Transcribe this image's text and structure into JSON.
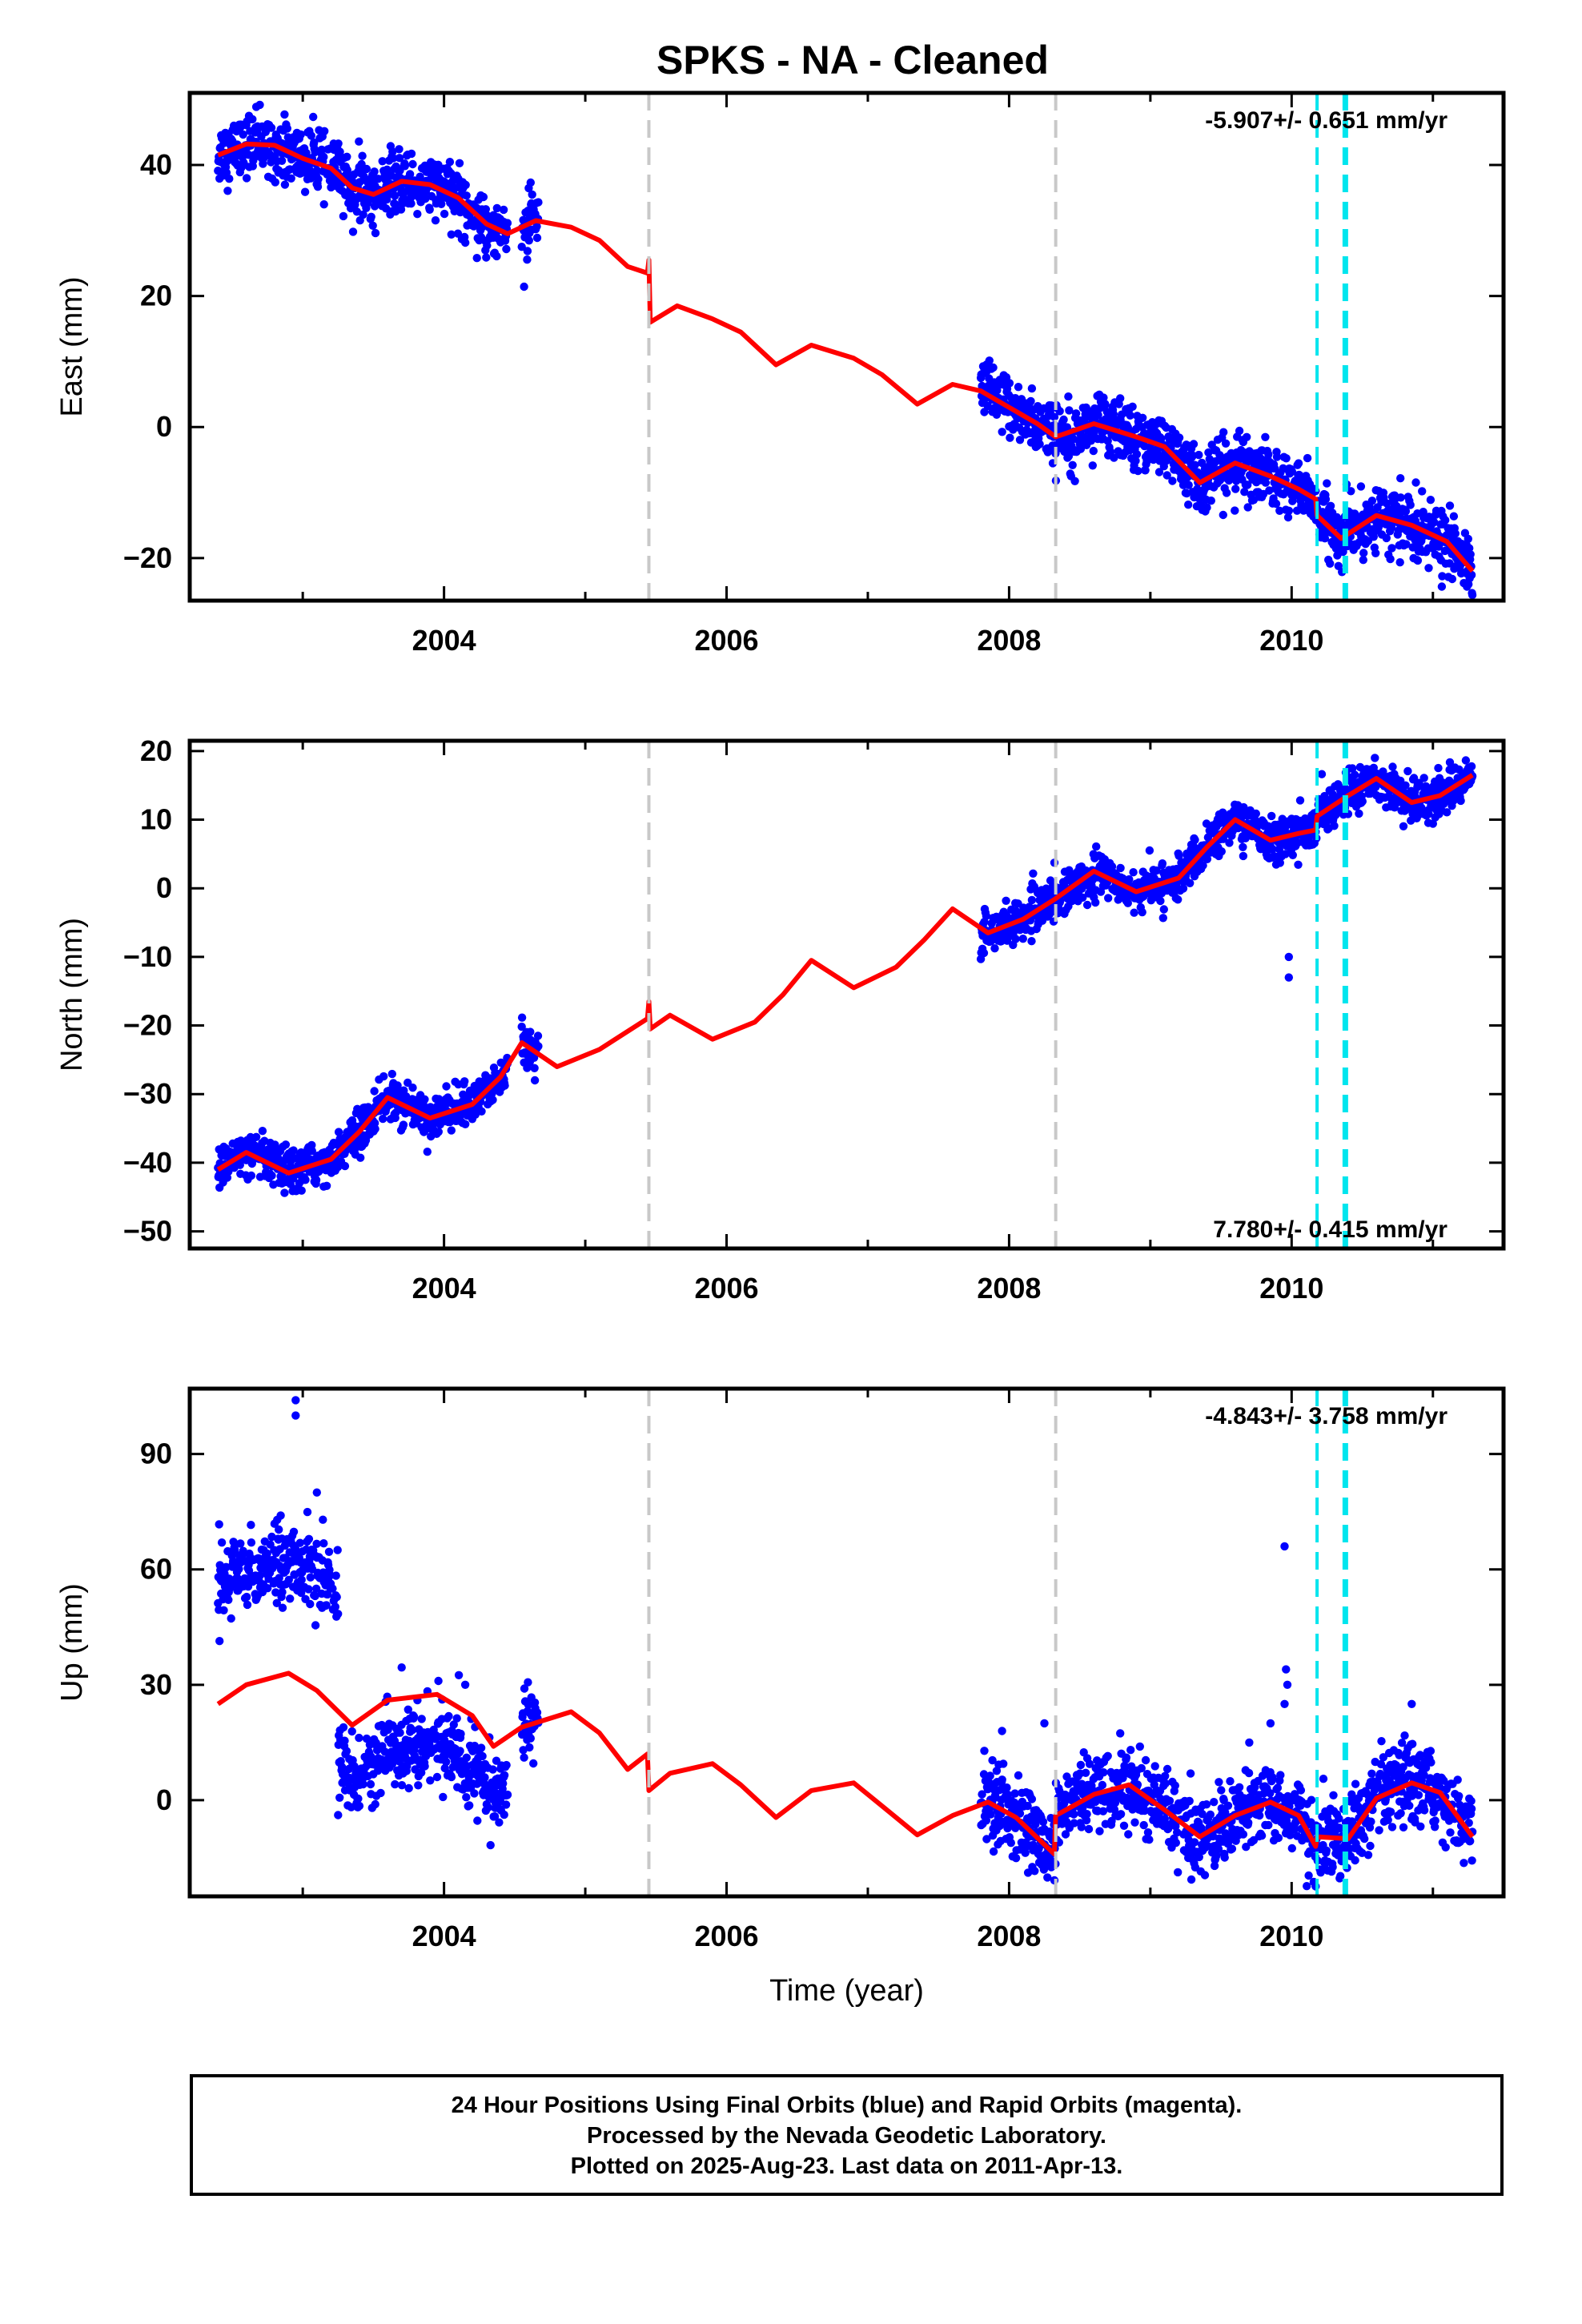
{
  "title": "SPKS  - NA - Cleaned",
  "colors": {
    "data_points": "#0000ff",
    "model_line": "#ff0000",
    "gray_marker": "#c8c8c8",
    "cyan_marker": "#00e5ee",
    "frame": "#000000"
  },
  "chart_data": [
    {
      "type": "scatter",
      "panel": "east",
      "xlabel": "",
      "ylabel": "East (mm)",
      "xlim": [
        2002.2,
        2011.5
      ],
      "ylim": [
        -26.5,
        51
      ],
      "xticks": [
        2004,
        2006,
        2008,
        2010
      ],
      "xtick_labels": [
        "2004",
        "2006",
        "2008",
        "2010"
      ],
      "yticks": [
        -20,
        0,
        20,
        40
      ],
      "ytick_labels": [
        "−20",
        "0",
        "20",
        "40"
      ],
      "rate_label": "-5.907+/- 0.651 mm/yr",
      "rate_position": "top-right",
      "gray_marker_dates": [
        2005.45,
        2008.33
      ],
      "cyan_marker_dates": [
        2010.18,
        2010.38
      ],
      "observation_segments": [
        [
          2002.4,
          2004.45
        ],
        [
          2004.55,
          2004.67
        ],
        [
          2007.8,
          2011.28
        ]
      ],
      "model_knots": [
        [
          2002.4,
          41.5
        ],
        [
          2002.6,
          43.2
        ],
        [
          2002.8,
          43.0
        ],
        [
          2003.0,
          41.0
        ],
        [
          2003.2,
          39.5
        ],
        [
          2003.35,
          36.5
        ],
        [
          2003.5,
          35.5
        ],
        [
          2003.7,
          37.5
        ],
        [
          2003.9,
          37.0
        ],
        [
          2004.1,
          35.0
        ],
        [
          2004.3,
          31.0
        ],
        [
          2004.45,
          29.5
        ],
        [
          2004.65,
          31.5
        ],
        [
          2004.9,
          30.5
        ],
        [
          2005.1,
          28.5
        ],
        [
          2005.3,
          24.5
        ],
        [
          2005.44,
          23.5
        ],
        [
          2005.45,
          25.5
        ],
        [
          2005.46,
          16.0
        ],
        [
          2005.65,
          18.5
        ],
        [
          2005.9,
          16.5
        ],
        [
          2006.1,
          14.5
        ],
        [
          2006.35,
          9.5
        ],
        [
          2006.6,
          12.5
        ],
        [
          2006.9,
          10.5
        ],
        [
          2007.1,
          8.0
        ],
        [
          2007.35,
          3.5
        ],
        [
          2007.6,
          6.5
        ],
        [
          2007.8,
          5.5
        ],
        [
          2008.0,
          3.0
        ],
        [
          2008.2,
          0.5
        ],
        [
          2008.33,
          -1.5
        ],
        [
          2008.6,
          0.5
        ],
        [
          2008.9,
          -1.5
        ],
        [
          2009.1,
          -3.0
        ],
        [
          2009.35,
          -8.5
        ],
        [
          2009.6,
          -5.5
        ],
        [
          2009.85,
          -7.5
        ],
        [
          2010.05,
          -9.5
        ],
        [
          2010.17,
          -11.0
        ],
        [
          2010.18,
          -13.5
        ],
        [
          2010.35,
          -17.0
        ],
        [
          2010.6,
          -13.5
        ],
        [
          2010.85,
          -15.0
        ],
        [
          2011.1,
          -17.5
        ],
        [
          2011.28,
          -22.0
        ]
      ],
      "scatter_spread": 2.3,
      "outliers": [],
      "series": [
        {
          "name": "Final Orbits (blue)"
        },
        {
          "name": "Rapid Orbits (magenta)"
        }
      ]
    },
    {
      "type": "scatter",
      "panel": "north",
      "xlabel": "",
      "ylabel": "North (mm)",
      "xlim": [
        2002.2,
        2011.5
      ],
      "ylim": [
        -52.5,
        21.5
      ],
      "xticks": [
        2004,
        2006,
        2008,
        2010
      ],
      "xtick_labels": [
        "2004",
        "2006",
        "2008",
        "2010"
      ],
      "yticks": [
        -50,
        -40,
        -30,
        -20,
        -10,
        0,
        10,
        20
      ],
      "ytick_labels": [
        "−50",
        "−40",
        "−30",
        "−20",
        "−10",
        "0",
        "10",
        "20"
      ],
      "rate_label": "7.780+/- 0.415 mm/yr",
      "rate_position": "bottom-right",
      "gray_marker_dates": [
        2005.45,
        2008.33
      ],
      "cyan_marker_dates": [
        2010.18,
        2010.38
      ],
      "observation_segments": [
        [
          2002.4,
          2004.45
        ],
        [
          2004.55,
          2004.67
        ],
        [
          2007.8,
          2011.28
        ]
      ],
      "model_knots": [
        [
          2002.4,
          -41.0
        ],
        [
          2002.6,
          -38.5
        ],
        [
          2002.9,
          -41.5
        ],
        [
          2003.2,
          -39.5
        ],
        [
          2003.4,
          -35.5
        ],
        [
          2003.6,
          -30.5
        ],
        [
          2003.9,
          -33.5
        ],
        [
          2004.2,
          -31.5
        ],
        [
          2004.4,
          -27.5
        ],
        [
          2004.55,
          -22.5
        ],
        [
          2004.8,
          -26.0
        ],
        [
          2005.1,
          -23.5
        ],
        [
          2005.44,
          -19.0
        ],
        [
          2005.45,
          -16.5
        ],
        [
          2005.46,
          -20.5
        ],
        [
          2005.6,
          -18.5
        ],
        [
          2005.9,
          -22.0
        ],
        [
          2006.2,
          -19.5
        ],
        [
          2006.4,
          -15.5
        ],
        [
          2006.6,
          -10.5
        ],
        [
          2006.9,
          -14.5
        ],
        [
          2007.2,
          -11.5
        ],
        [
          2007.4,
          -7.5
        ],
        [
          2007.6,
          -3.0
        ],
        [
          2007.85,
          -6.5
        ],
        [
          2008.1,
          -4.5
        ],
        [
          2008.33,
          -1.5
        ],
        [
          2008.6,
          2.5
        ],
        [
          2008.9,
          -0.5
        ],
        [
          2009.2,
          1.5
        ],
        [
          2009.4,
          6.0
        ],
        [
          2009.6,
          10.0
        ],
        [
          2009.85,
          7.0
        ],
        [
          2010.05,
          8.0
        ],
        [
          2010.17,
          8.5
        ],
        [
          2010.18,
          10.5
        ],
        [
          2010.4,
          13.5
        ],
        [
          2010.6,
          16.0
        ],
        [
          2010.85,
          12.5
        ],
        [
          2011.05,
          13.5
        ],
        [
          2011.28,
          16.5
        ]
      ],
      "scatter_spread": 1.5,
      "outliers": [
        [
          2009.98,
          -10.0
        ],
        [
          2009.98,
          -13.0
        ]
      ],
      "series": [
        {
          "name": "Final Orbits (blue)"
        },
        {
          "name": "Rapid Orbits (magenta)"
        }
      ]
    },
    {
      "type": "scatter",
      "panel": "up",
      "xlabel": "Time (year)",
      "ylabel": "Up (mm)",
      "xlim": [
        2002.2,
        2011.5
      ],
      "ylim": [
        -25,
        107
      ],
      "xticks": [
        2004,
        2006,
        2008,
        2010
      ],
      "xtick_labels": [
        "2004",
        "2006",
        "2008",
        "2010"
      ],
      "yticks": [
        0,
        30,
        60,
        90
      ],
      "ytick_labels": [
        "0",
        "30",
        "60",
        "90"
      ],
      "rate_label": "-4.843+/- 3.758 mm/yr",
      "rate_position": "top-right",
      "gray_marker_dates": [
        2005.45,
        2008.33
      ],
      "cyan_marker_dates": [
        2010.18,
        2010.38
      ],
      "observation_segments": [
        [
          2002.4,
          2003.25
        ],
        [
          2003.25,
          2004.45
        ],
        [
          2004.55,
          2004.67
        ],
        [
          2007.8,
          2011.28
        ]
      ],
      "segment_offsets": [
        [
          2002.4,
          2003.25,
          30
        ],
        [
          2003.25,
          2004.45,
          -13
        ]
      ],
      "model_knots": [
        [
          2002.4,
          25.0
        ],
        [
          2002.6,
          30.0
        ],
        [
          2002.9,
          33.0
        ],
        [
          2003.1,
          28.5
        ],
        [
          2003.35,
          19.5
        ],
        [
          2003.6,
          26.0
        ],
        [
          2003.95,
          27.5
        ],
        [
          2004.2,
          22.0
        ],
        [
          2004.35,
          14.0
        ],
        [
          2004.55,
          19.0
        ],
        [
          2004.9,
          23.0
        ],
        [
          2005.1,
          17.5
        ],
        [
          2005.3,
          8.0
        ],
        [
          2005.44,
          12.0
        ],
        [
          2005.45,
          2.5
        ],
        [
          2005.6,
          7.0
        ],
        [
          2005.9,
          9.5
        ],
        [
          2006.1,
          4.0
        ],
        [
          2006.35,
          -4.5
        ],
        [
          2006.6,
          2.5
        ],
        [
          2006.9,
          4.5
        ],
        [
          2007.1,
          -1.5
        ],
        [
          2007.35,
          -9.0
        ],
        [
          2007.6,
          -4.0
        ],
        [
          2007.85,
          -0.5
        ],
        [
          2008.05,
          -4.5
        ],
        [
          2008.32,
          -14.0
        ],
        [
          2008.33,
          -4.0
        ],
        [
          2008.6,
          1.5
        ],
        [
          2008.85,
          4.0
        ],
        [
          2009.1,
          -2.5
        ],
        [
          2009.35,
          -9.5
        ],
        [
          2009.6,
          -4.0
        ],
        [
          2009.85,
          -0.5
        ],
        [
          2010.05,
          -4.0
        ],
        [
          2010.17,
          -12.0
        ],
        [
          2010.18,
          -9.5
        ],
        [
          2010.4,
          -10.0
        ],
        [
          2010.6,
          0.5
        ],
        [
          2010.85,
          4.5
        ],
        [
          2011.05,
          2.0
        ],
        [
          2011.28,
          -9.5
        ]
      ],
      "scatter_spread": 5.0,
      "outliers": [
        [
          2009.95,
          66.0
        ],
        [
          2009.96,
          34.0
        ],
        [
          2009.97,
          30.0
        ],
        [
          2009.95,
          25.0
        ],
        [
          2009.7,
          15.0
        ],
        [
          2010.85,
          25.0
        ],
        [
          2002.95,
          104.0
        ],
        [
          2002.95,
          100.0
        ],
        [
          2003.1,
          80.0
        ],
        [
          2003.96,
          31.0
        ],
        [
          2004.15,
          30.0
        ],
        [
          2003.7,
          34.5
        ],
        [
          2007.95,
          18.0
        ],
        [
          2008.25,
          20.0
        ],
        [
          2009.85,
          20.0
        ]
      ],
      "series": [
        {
          "name": "Final Orbits (blue)"
        },
        {
          "name": "Rapid Orbits (magenta)"
        }
      ]
    }
  ],
  "caption": {
    "line1": "24 Hour Positions Using Final Orbits (blue) and Rapid Orbits (magenta).",
    "line2": "Processed by the Nevada Geodetic Laboratory.",
    "line3": "Plotted on 2025-Aug-23. Last data on 2011-Apr-13."
  }
}
